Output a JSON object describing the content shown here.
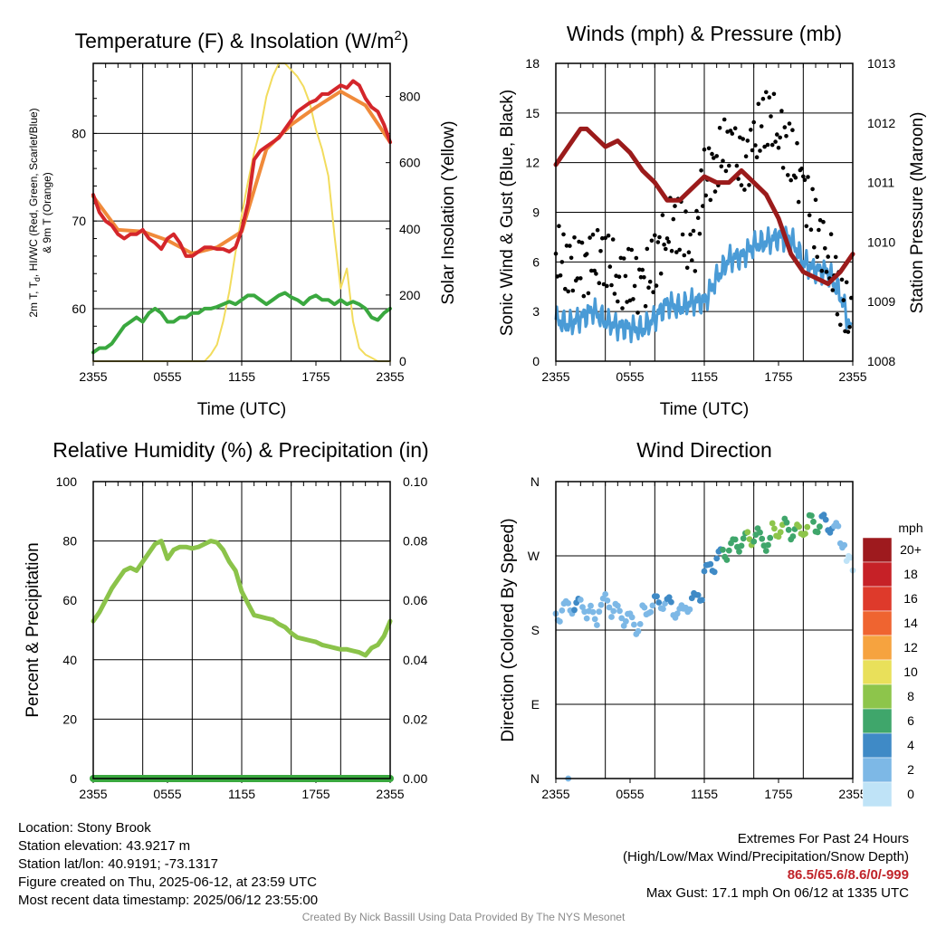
{
  "colors": {
    "temp_red": "#d4262b",
    "heat_index_orange": "#f08a3a",
    "dewpoint_green": "#3aa83f",
    "insolation_yellow": "#f2dc5d",
    "humidity_green": "#8bc34a",
    "precip_green": "#3aa83f",
    "wind_blue": "#4a9bd6",
    "gust_black": "#000000",
    "pressure_maroon": "#9b1b1b"
  },
  "panels": {
    "temp": {
      "title": "Temperature (F) & Insolation (W/m",
      "title_sup": "2",
      "title_close": ")",
      "ylabel_lines": [
        "2m T, T",
        "d",
        ", HI/WC (Red, Green, Scarlet/Blue)",
        "& 9m T (Orange)"
      ],
      "y2label": "Solar Insolation (Yellow)",
      "xlabel": "Time (UTC)"
    },
    "wind": {
      "title": "Winds (mph) & Pressure (mb)",
      "ylabel": "Sonic Wind & Gust (Blue, Black)",
      "y2label": "Station Pressure (Maroon)",
      "xlabel": "Time (UTC)"
    },
    "rh": {
      "title": "Relative Humidity (%) & Precipitation (in)",
      "ylabel": "Percent & Precipitation"
    },
    "dir": {
      "title": "Wind Direction",
      "ylabel": "Direction (Colored By Speed)",
      "legend_title": "mph",
      "legend_labels": [
        "20+",
        "18",
        "16",
        "14",
        "12",
        "10",
        "8",
        "6",
        "4",
        "2",
        "0"
      ],
      "legend_colors": [
        "#9e1a1e",
        "#c62127",
        "#de3a2b",
        "#ef6430",
        "#f6a33f",
        "#e9e05a",
        "#8dc54b",
        "#3fa66b",
        "#3f8ac6",
        "#7db8e6",
        "#bfe3f7"
      ]
    }
  },
  "chart_data": [
    {
      "type": "line",
      "title": "Temperature (F) & Insolation (W/m2)",
      "xlabel": "Time (UTC)",
      "ylabel": "2m T, Td, HI/WC (Red, Green, Scarlet/Blue) & 9m T (Orange)",
      "y2label": "Solar Insolation (Yellow)",
      "x_ticks": [
        "2355",
        "0555",
        "1155",
        "1755",
        "2355"
      ],
      "xlim_hours": [
        0,
        24
      ],
      "ylim": [
        54,
        88
      ],
      "y_ticks": [
        60,
        70,
        80
      ],
      "y2lim": [
        0,
        900
      ],
      "y2_ticks": [
        0,
        200,
        400,
        600,
        800
      ],
      "grid": true,
      "series": [
        {
          "name": "2m T",
          "axis": "left",
          "color": "#d4262b",
          "x": [
            0,
            0.5,
            1,
            1.5,
            2,
            2.5,
            3,
            3.5,
            4,
            4.5,
            5,
            5.5,
            6,
            6.5,
            7,
            7.5,
            8,
            8.5,
            9,
            9.5,
            10,
            10.5,
            11,
            11.5,
            12,
            12.5,
            13,
            13.5,
            14,
            14.5,
            15,
            15.5,
            16,
            16.5,
            17,
            17.5,
            18,
            18.5,
            19,
            19.5,
            20,
            20.5,
            21,
            21.5,
            22,
            22.5,
            23,
            23.5,
            24
          ],
          "y": [
            73,
            71,
            70,
            69.5,
            68.5,
            68,
            68.5,
            68.5,
            69,
            68,
            67.5,
            66.8,
            68,
            68.5,
            67.5,
            66,
            66,
            66.5,
            67,
            67,
            66.8,
            66.8,
            66.5,
            67,
            69,
            72,
            77,
            78,
            78.5,
            79,
            79.5,
            80.5,
            81.5,
            82.5,
            83,
            83.5,
            83.8,
            84.5,
            84.5,
            85,
            85.5,
            85.2,
            86,
            85.5,
            84,
            83,
            82.5,
            81,
            79
          ]
        },
        {
          "name": "9m T",
          "axis": "left",
          "color": "#f08a3a",
          "x": [
            0,
            2,
            4,
            6,
            8,
            10,
            12,
            14,
            16,
            18,
            20,
            22,
            24
          ],
          "y": [
            72.8,
            69,
            68.8,
            67.8,
            66.3,
            67,
            68.8,
            78.2,
            81,
            83,
            84.8,
            83.2,
            79
          ]
        },
        {
          "name": "Td",
          "axis": "left",
          "color": "#3aa83f",
          "x": [
            0,
            0.5,
            1,
            1.5,
            2,
            2.5,
            3,
            3.5,
            4,
            4.5,
            5,
            5.5,
            6,
            6.5,
            7,
            7.5,
            8,
            8.5,
            9,
            9.5,
            10,
            10.5,
            11,
            11.5,
            12,
            12.5,
            13,
            13.5,
            14,
            14.5,
            15,
            15.5,
            16,
            16.5,
            17,
            17.5,
            18,
            18.5,
            19,
            19.5,
            20,
            20.5,
            21,
            21.5,
            22,
            22.5,
            23,
            23.5,
            24
          ],
          "y": [
            55,
            55.5,
            55.5,
            56,
            57,
            58,
            58.5,
            59,
            58.5,
            59.5,
            60,
            59.5,
            58.5,
            58.5,
            59,
            59,
            59.5,
            59.5,
            60,
            60,
            60.2,
            60.5,
            60.8,
            60.5,
            61,
            61.5,
            61.5,
            61,
            60.5,
            61,
            61.5,
            61.8,
            61.3,
            61,
            60.5,
            61.2,
            61.5,
            61,
            61,
            60.5,
            61,
            60.5,
            60.8,
            60.5,
            60,
            59,
            58.7,
            59.5,
            60
          ]
        },
        {
          "name": "Solar Insolation",
          "axis": "right",
          "color": "#f2dc5d",
          "x": [
            0,
            1,
            2,
            3,
            4,
            5,
            6,
            7,
            8,
            8.5,
            9,
            9.5,
            10,
            10.5,
            11,
            11.5,
            12,
            12.5,
            13,
            13.5,
            14,
            14.5,
            15,
            15.5,
            16,
            16.5,
            17,
            17.5,
            18,
            18.5,
            19,
            19.5,
            20,
            20.5,
            21,
            21.5,
            22,
            22.5,
            23,
            23.5,
            24
          ],
          "y": [
            0,
            0,
            0,
            0,
            0,
            0,
            0,
            0,
            0,
            0,
            0,
            20,
            50,
            120,
            210,
            330,
            440,
            540,
            630,
            700,
            800,
            860,
            900,
            900,
            880,
            860,
            830,
            780,
            700,
            640,
            560,
            380,
            220,
            280,
            120,
            40,
            20,
            10,
            0,
            0,
            0
          ]
        }
      ]
    },
    {
      "type": "line",
      "title": "Winds (mph) & Pressure (mb)",
      "xlabel": "Time (UTC)",
      "ylabel": "Sonic Wind & Gust (Blue, Black)",
      "y2label": "Station Pressure (Maroon)",
      "x_ticks": [
        "2355",
        "0555",
        "1155",
        "1755",
        "2355"
      ],
      "xlim_hours": [
        0,
        24
      ],
      "ylim": [
        0,
        18
      ],
      "y_ticks": [
        0,
        3,
        6,
        9,
        12,
        15,
        18
      ],
      "y2lim": [
        1008,
        1013
      ],
      "y2_ticks": [
        1008,
        1009,
        1010,
        1011,
        1012,
        1013
      ],
      "grid": true,
      "series": [
        {
          "name": "Sonic Wind",
          "axis": "left",
          "color": "#4a9bd6",
          "x": [
            0,
            1,
            2,
            3,
            4,
            5,
            6,
            7,
            8,
            9,
            10,
            11,
            12,
            13,
            14,
            15,
            16,
            17,
            18,
            19,
            20,
            21,
            22,
            23,
            24
          ],
          "y": [
            2.5,
            2.2,
            2.6,
            3.1,
            2.4,
            2.1,
            2.0,
            1.9,
            2.6,
            3.5,
            3.2,
            3.6,
            3.6,
            5.0,
            6.2,
            6.3,
            7.0,
            7.2,
            7.5,
            7.4,
            6.0,
            5.5,
            5.4,
            4.0,
            1.5
          ]
        },
        {
          "name": "Gust",
          "axis": "left",
          "color": "#000000",
          "x": [
            0,
            1,
            2,
            3,
            4,
            5,
            6,
            7,
            8,
            9,
            10,
            11,
            12,
            13,
            14,
            15,
            16,
            17,
            18,
            19,
            20,
            21,
            22,
            23,
            24
          ],
          "y": [
            6.5,
            6.0,
            5.5,
            6.0,
            6.5,
            5.0,
            5.0,
            4.5,
            6.0,
            8.0,
            8.5,
            6.0,
            11.0,
            12.0,
            13.5,
            11.5,
            13.0,
            15.0,
            14.0,
            12.5,
            10.5,
            8.0,
            6.5,
            4.0,
            2.0
          ]
        },
        {
          "name": "Station Pressure",
          "axis": "right",
          "color": "#9b1b1b",
          "x": [
            0,
            1,
            2,
            2.5,
            3,
            4,
            5,
            6,
            7,
            8,
            9,
            10,
            11,
            12,
            13,
            14,
            15,
            16,
            17,
            18,
            19,
            20,
            21,
            22,
            23,
            24
          ],
          "y": [
            1011.3,
            1011.6,
            1011.9,
            1011.9,
            1011.8,
            1011.6,
            1011.7,
            1011.5,
            1011.2,
            1011.0,
            1010.7,
            1010.7,
            1010.9,
            1011.1,
            1011.0,
            1011.0,
            1011.2,
            1011.0,
            1010.8,
            1010.4,
            1009.8,
            1009.5,
            1009.4,
            1009.3,
            1009.5,
            1009.8
          ]
        }
      ]
    },
    {
      "type": "line",
      "title": "Relative Humidity (%) & Precipitation (in)",
      "ylabel": "Percent & Precipitation",
      "x_ticks": [
        "2355",
        "0555",
        "1155",
        "1755",
        "2355"
      ],
      "xlim_hours": [
        0,
        24
      ],
      "ylim": [
        0,
        100
      ],
      "y_ticks": [
        0,
        20,
        40,
        60,
        80,
        100
      ],
      "y2lim": [
        0,
        0.1
      ],
      "y2_ticks": [
        "0.00",
        "0.02",
        "0.04",
        "0.06",
        "0.08",
        "0.10"
      ],
      "grid": true,
      "series": [
        {
          "name": "Relative Humidity",
          "axis": "left",
          "color": "#8bc34a",
          "x": [
            0,
            0.5,
            1,
            1.5,
            2,
            2.5,
            3,
            3.5,
            4,
            4.5,
            5,
            5.5,
            6,
            6.5,
            7,
            7.5,
            8,
            8.5,
            9,
            9.5,
            10,
            10.5,
            11,
            11.5,
            12,
            12.5,
            13,
            13.5,
            14,
            14.5,
            15,
            15.5,
            16,
            16.5,
            17,
            17.5,
            18,
            18.5,
            19,
            19.5,
            20,
            20.5,
            21,
            21.5,
            22,
            22.5,
            23,
            23.5,
            24
          ],
          "y": [
            53,
            56,
            60,
            64,
            67,
            70,
            71,
            70,
            73,
            76,
            79,
            80,
            74,
            77,
            78,
            78,
            77.5,
            78,
            79,
            80,
            79.5,
            77,
            73,
            70,
            63,
            59,
            55,
            54.5,
            54,
            53.5,
            52,
            51,
            49,
            47.5,
            47,
            46.5,
            46,
            45,
            44.5,
            44,
            43.5,
            43.5,
            43,
            42.5,
            41.5,
            44,
            45,
            48,
            53
          ]
        },
        {
          "name": "Precipitation",
          "axis": "right",
          "color": "#3aa83f",
          "x": [
            0,
            24
          ],
          "y": [
            0,
            0
          ]
        }
      ]
    },
    {
      "type": "scatter",
      "title": "Wind Direction",
      "ylabel": "Direction (Colored By Speed)",
      "x_ticks": [
        "2355",
        "0555",
        "1155",
        "1755",
        "2355"
      ],
      "xlim_hours": [
        0,
        24
      ],
      "y_ticks": [
        "N",
        "E",
        "S",
        "W",
        "N"
      ],
      "ylim_deg": [
        0,
        360
      ],
      "grid": true,
      "legend_title": "mph",
      "color_scale": [
        "0",
        "2",
        "4",
        "6",
        "8",
        "10",
        "12",
        "14",
        "16",
        "18",
        "20+"
      ],
      "series": [
        {
          "name": "Wind Direction",
          "x": [
            0,
            0.5,
            1,
            1.5,
            2,
            2.5,
            3,
            3.5,
            4,
            4.5,
            5,
            5.5,
            6,
            6.5,
            7,
            7.5,
            8,
            8.5,
            9,
            9.5,
            10,
            10.5,
            11,
            11.5,
            12,
            12.5,
            13,
            13.5,
            14,
            14.5,
            15,
            15.5,
            16,
            16.5,
            17,
            17.5,
            18,
            18.5,
            19,
            19.5,
            20,
            20.5,
            21,
            21.5,
            22,
            22.5,
            23,
            23.5,
            24,
            1.0
          ],
          "y": [
            200,
            205,
            210,
            208,
            212,
            200,
            195,
            210,
            215,
            205,
            200,
            195,
            190,
            185,
            200,
            210,
            212,
            215,
            210,
            205,
            200,
            212,
            215,
            225,
            250,
            260,
            268,
            275,
            280,
            285,
            288,
            292,
            295,
            290,
            285,
            300,
            303,
            305,
            300,
            298,
            305,
            310,
            308,
            310,
            308,
            300,
            290,
            260,
            255,
            0
          ],
          "speed": [
            2,
            2,
            2,
            4,
            2,
            2,
            2,
            2,
            2,
            2,
            2,
            2,
            2,
            2,
            2,
            2,
            4,
            2,
            4,
            2,
            2,
            2,
            4,
            4,
            4,
            4,
            4,
            6,
            6,
            6,
            6,
            8,
            6,
            6,
            6,
            8,
            8,
            6,
            6,
            8,
            8,
            6,
            6,
            4,
            4,
            2,
            2,
            0,
            0,
            2
          ]
        }
      ]
    }
  ],
  "footer": {
    "location": "Location: Stony Brook",
    "elevation": "Station elevation: 43.9217 m",
    "latlon": "Station lat/lon: 40.9191; -73.1317",
    "created": "Figure created on Thu, 2025-06-12, at 23:59 UTC",
    "recent": "Most recent data timestamp: 2025/06/12 23:55:00",
    "extremes_title": "Extremes For Past 24 Hours",
    "extremes_desc": "(High/Low/Max Wind/Precipitation/Snow Depth)",
    "extremes_values": "86.5/65.6/8.6/0/-999",
    "max_gust": "Max Gust: 17.1 mph On 06/12 at 1335 UTC",
    "credit": "Created By Nick Bassill Using Data Provided By The NYS Mesonet"
  }
}
